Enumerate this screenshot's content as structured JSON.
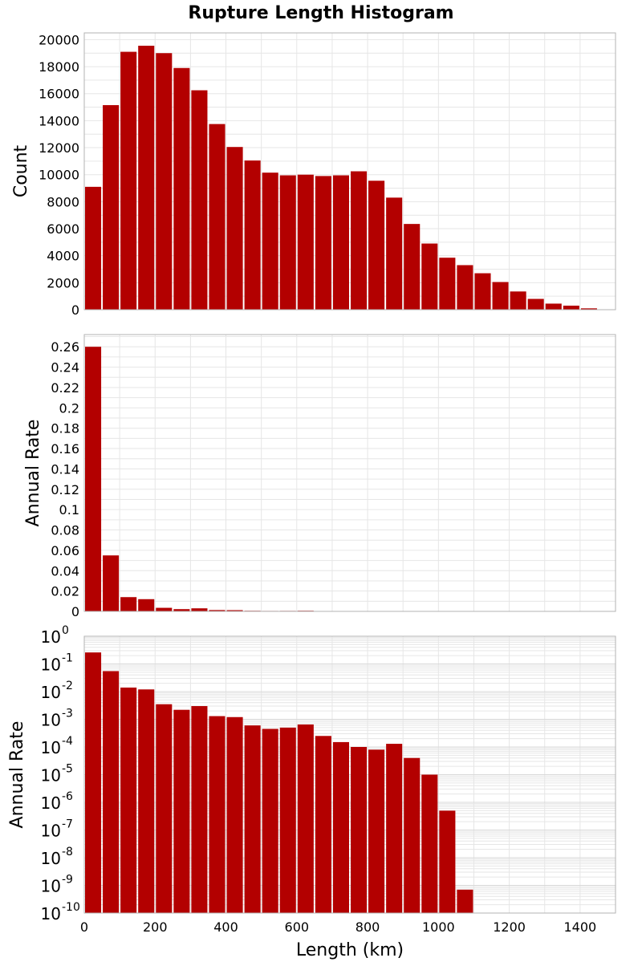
{
  "chart_data": [
    {
      "type": "bar",
      "title": "Rupture Length Histogram",
      "ylabel": "Count",
      "xlabel": "",
      "ylim": [
        0,
        20500
      ],
      "xlim": [
        0,
        1500
      ],
      "bin_width": 50,
      "bin_starts": [
        0,
        50,
        100,
        150,
        200,
        250,
        300,
        350,
        400,
        450,
        500,
        550,
        600,
        650,
        700,
        750,
        800,
        850,
        900,
        950,
        1000,
        1050,
        1100,
        1150,
        1200,
        1250,
        1300,
        1350,
        1400,
        1450
      ],
      "values": [
        9100,
        15150,
        19100,
        19550,
        19000,
        17900,
        16250,
        13750,
        12050,
        11050,
        10150,
        9950,
        10000,
        9900,
        9950,
        10250,
        9550,
        8300,
        6350,
        4900,
        3850,
        3300,
        2700,
        2050,
        1350,
        800,
        450,
        300,
        100,
        20
      ],
      "yticks": [
        0,
        2000,
        4000,
        6000,
        8000,
        10000,
        12000,
        14000,
        16000,
        18000,
        20000
      ],
      "ytick_labels": [
        "0",
        "2000",
        "4000",
        "6000",
        "8000",
        "10000",
        "12000",
        "14000",
        "16000",
        "18000",
        "20000"
      ],
      "grid": true
    },
    {
      "type": "bar",
      "ylabel": "Annual Rate",
      "xlabel": "",
      "ylim": [
        0,
        0.272
      ],
      "xlim": [
        0,
        1500
      ],
      "bin_width": 50,
      "bin_starts": [
        0,
        50,
        100,
        150,
        200,
        250,
        300,
        350,
        400,
        450,
        500,
        550,
        600,
        650,
        700,
        750,
        800,
        850,
        900,
        950,
        1000,
        1050,
        1100,
        1150,
        1200,
        1250,
        1300,
        1350,
        1400,
        1450
      ],
      "values": [
        0.26,
        0.055,
        0.014,
        0.012,
        0.0035,
        0.0022,
        0.003,
        0.0013,
        0.0012,
        0.0006,
        0.00045,
        0.0005,
        0.00065,
        0.00025,
        0.00015,
        0.0001,
        8e-05,
        0.00013,
        4e-05,
        1e-05,
        5e-07,
        7e-10,
        0,
        0,
        0,
        0,
        0,
        0,
        0,
        0
      ],
      "yticks": [
        0,
        0.02,
        0.04,
        0.06,
        0.08,
        0.1,
        0.12,
        0.14,
        0.16,
        0.18,
        0.2,
        0.22,
        0.24,
        0.26
      ],
      "ytick_labels": [
        "0",
        "0.02",
        "0.04",
        "0.06",
        "0.08",
        "0.1",
        "0.12",
        "0.14",
        "0.16",
        "0.18",
        "0.2",
        "0.22",
        "0.24",
        "0.26"
      ],
      "grid": true
    },
    {
      "type": "bar",
      "yscale": "log",
      "ylabel": "Annual Rate",
      "xlabel": "Length (km)",
      "ylim": [
        1e-10,
        1
      ],
      "xlim": [
        0,
        1500
      ],
      "bin_width": 50,
      "bin_starts": [
        0,
        50,
        100,
        150,
        200,
        250,
        300,
        350,
        400,
        450,
        500,
        550,
        600,
        650,
        700,
        750,
        800,
        850,
        900,
        950,
        1000,
        1050,
        1100,
        1150,
        1200,
        1250,
        1300,
        1350,
        1400,
        1450
      ],
      "values": [
        0.26,
        0.055,
        0.014,
        0.012,
        0.0035,
        0.0022,
        0.003,
        0.0013,
        0.0012,
        0.0006,
        0.00045,
        0.0005,
        0.00065,
        0.00025,
        0.00015,
        0.0001,
        8e-05,
        0.00013,
        4e-05,
        1e-05,
        5e-07,
        7e-10,
        0,
        0,
        0,
        0,
        0,
        0,
        0,
        0
      ],
      "ytick_bases": [
        "10",
        "10",
        "10",
        "10",
        "10",
        "10",
        "10",
        "10",
        "10",
        "10",
        "10"
      ],
      "ytick_exponents": [
        "-10",
        "-9",
        "-8",
        "-7",
        "-6",
        "-5",
        "-4",
        "-3",
        "-2",
        "-1",
        "0"
      ],
      "xticks": [
        0,
        200,
        400,
        600,
        800,
        1000,
        1200,
        1400
      ],
      "xtick_labels": [
        "0",
        "200",
        "400",
        "600",
        "800",
        "1000",
        "1200",
        "1400"
      ],
      "grid": true
    }
  ],
  "colors": {
    "bar": "#b30000",
    "grid": "#e6e6e6",
    "frame": "#b3b3b3",
    "background": "#ffffff"
  }
}
